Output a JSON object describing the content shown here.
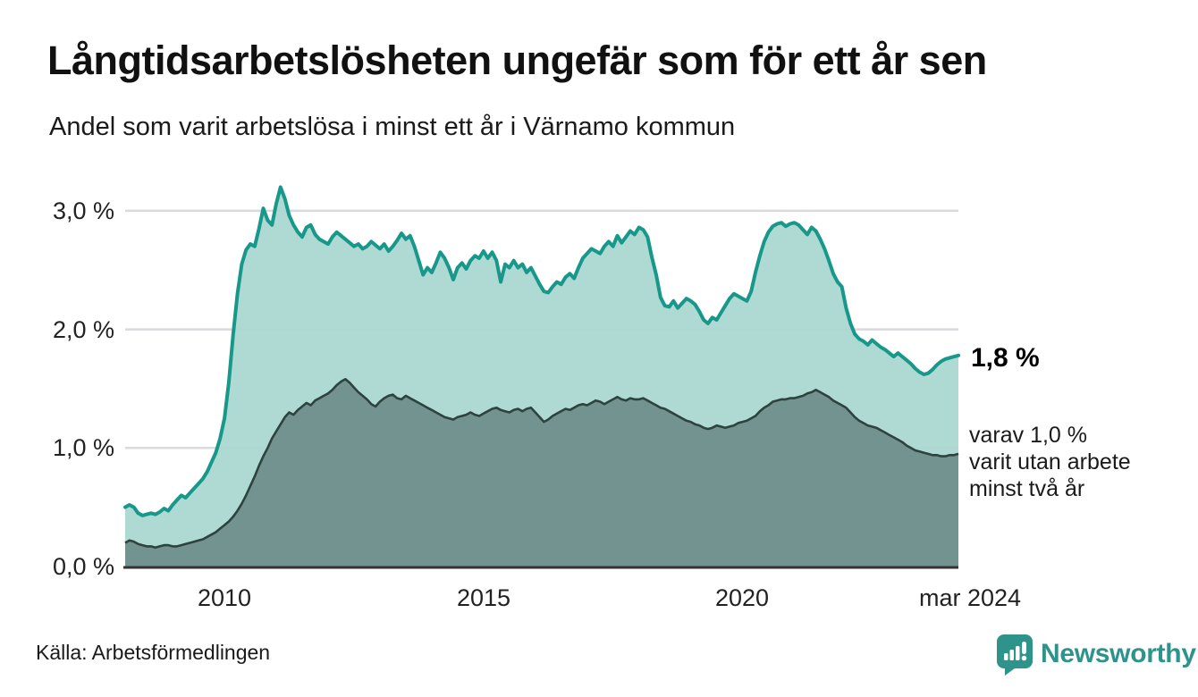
{
  "header": {
    "title": "Långtidsarbetslösheten ungefär som för ett år sen",
    "subtitle": "Andel som varit arbetslösa i minst ett år i Värnamo kommun"
  },
  "annotations": {
    "end_value": "1,8 %",
    "secondary_note": "varav 1,0 %\nvarit utan arbete\nminst två år"
  },
  "footer": {
    "source": "Källa: Arbetsförmedlingen",
    "brand": "Newsworthy"
  },
  "colors": {
    "primary_line": "#17988a",
    "primary_fill": "#a9d7d1",
    "secondary_line": "#2e423e",
    "secondary_fill": "#6f918c",
    "gridline": "#d9d9de",
    "axis": "#333333",
    "brand_teal": "#2e938b"
  },
  "chart_data": {
    "type": "area",
    "title": "Långtidsarbetslösheten ungefär som för ett år sen",
    "subtitle": "Andel som varit arbetslösa i minst ett år i Värnamo kommun",
    "unit": "%",
    "x_start": "2008-02",
    "x_end": "2024-03",
    "x_tick_labels": [
      "2010",
      "2015",
      "2020",
      "mar 2024"
    ],
    "x_tick_month_index": [
      23,
      83,
      143,
      193
    ],
    "y_tick_labels": [
      "3,0 %",
      "2,0 %",
      "1,0 %",
      "0,0 %"
    ],
    "y_ticks": [
      3.0,
      2.0,
      1.0,
      0.0
    ],
    "ylim": [
      0,
      3.3
    ],
    "grid": true,
    "legend_position": "right-annotations",
    "end_values": {
      "minst_ett_ar": 1.8,
      "minst_tva_ar": 1.0
    },
    "series": [
      {
        "name": "Andel arbetslösa minst ett år",
        "values": [
          0.5,
          0.52,
          0.5,
          0.45,
          0.43,
          0.44,
          0.45,
          0.44,
          0.46,
          0.49,
          0.47,
          0.52,
          0.56,
          0.6,
          0.58,
          0.62,
          0.66,
          0.7,
          0.74,
          0.8,
          0.88,
          0.96,
          1.08,
          1.25,
          1.55,
          1.95,
          2.3,
          2.55,
          2.67,
          2.72,
          2.7,
          2.85,
          3.02,
          2.92,
          2.88,
          3.06,
          3.2,
          3.1,
          2.96,
          2.88,
          2.82,
          2.78,
          2.86,
          2.88,
          2.8,
          2.76,
          2.74,
          2.72,
          2.78,
          2.82,
          2.79,
          2.76,
          2.73,
          2.7,
          2.72,
          2.68,
          2.7,
          2.74,
          2.71,
          2.68,
          2.72,
          2.66,
          2.7,
          2.75,
          2.81,
          2.76,
          2.79,
          2.7,
          2.58,
          2.46,
          2.52,
          2.48,
          2.56,
          2.65,
          2.6,
          2.52,
          2.42,
          2.52,
          2.56,
          2.51,
          2.58,
          2.62,
          2.6,
          2.66,
          2.6,
          2.65,
          2.58,
          2.4,
          2.55,
          2.52,
          2.58,
          2.52,
          2.55,
          2.48,
          2.52,
          2.45,
          2.38,
          2.32,
          2.31,
          2.36,
          2.4,
          2.38,
          2.44,
          2.47,
          2.43,
          2.52,
          2.6,
          2.64,
          2.68,
          2.66,
          2.64,
          2.7,
          2.74,
          2.7,
          2.79,
          2.73,
          2.78,
          2.83,
          2.8,
          2.86,
          2.84,
          2.78,
          2.61,
          2.46,
          2.27,
          2.2,
          2.19,
          2.24,
          2.18,
          2.22,
          2.26,
          2.24,
          2.21,
          2.15,
          2.08,
          2.05,
          2.1,
          2.08,
          2.14,
          2.2,
          2.26,
          2.3,
          2.28,
          2.26,
          2.24,
          2.32,
          2.48,
          2.62,
          2.74,
          2.82,
          2.87,
          2.89,
          2.9,
          2.87,
          2.89,
          2.9,
          2.88,
          2.84,
          2.8,
          2.86,
          2.83,
          2.76,
          2.68,
          2.58,
          2.47,
          2.4,
          2.36,
          2.18,
          2.05,
          1.96,
          1.92,
          1.9,
          1.87,
          1.91,
          1.88,
          1.85,
          1.83,
          1.8,
          1.77,
          1.8,
          1.77,
          1.74,
          1.71,
          1.67,
          1.64,
          1.62,
          1.63,
          1.66,
          1.7,
          1.73,
          1.75,
          1.76,
          1.77,
          1.78
        ]
      },
      {
        "name": "varav utan arbete minst två år",
        "values": [
          0.2,
          0.22,
          0.21,
          0.19,
          0.18,
          0.17,
          0.17,
          0.16,
          0.17,
          0.18,
          0.18,
          0.17,
          0.17,
          0.18,
          0.19,
          0.2,
          0.21,
          0.22,
          0.23,
          0.25,
          0.27,
          0.29,
          0.32,
          0.35,
          0.38,
          0.42,
          0.47,
          0.53,
          0.6,
          0.68,
          0.76,
          0.85,
          0.93,
          1.0,
          1.08,
          1.14,
          1.2,
          1.26,
          1.3,
          1.28,
          1.32,
          1.35,
          1.38,
          1.36,
          1.4,
          1.42,
          1.44,
          1.46,
          1.49,
          1.53,
          1.56,
          1.58,
          1.55,
          1.51,
          1.47,
          1.44,
          1.41,
          1.37,
          1.35,
          1.39,
          1.42,
          1.44,
          1.45,
          1.42,
          1.41,
          1.44,
          1.42,
          1.4,
          1.38,
          1.36,
          1.34,
          1.32,
          1.3,
          1.28,
          1.26,
          1.25,
          1.24,
          1.26,
          1.27,
          1.28,
          1.3,
          1.28,
          1.27,
          1.29,
          1.31,
          1.33,
          1.34,
          1.32,
          1.31,
          1.3,
          1.32,
          1.33,
          1.31,
          1.33,
          1.34,
          1.3,
          1.26,
          1.22,
          1.24,
          1.27,
          1.29,
          1.31,
          1.33,
          1.32,
          1.34,
          1.36,
          1.37,
          1.36,
          1.38,
          1.4,
          1.39,
          1.37,
          1.39,
          1.41,
          1.43,
          1.41,
          1.4,
          1.42,
          1.41,
          1.41,
          1.42,
          1.4,
          1.38,
          1.36,
          1.34,
          1.33,
          1.31,
          1.29,
          1.27,
          1.25,
          1.23,
          1.22,
          1.2,
          1.19,
          1.17,
          1.16,
          1.17,
          1.19,
          1.18,
          1.17,
          1.18,
          1.19,
          1.21,
          1.22,
          1.23,
          1.25,
          1.27,
          1.31,
          1.34,
          1.36,
          1.39,
          1.4,
          1.41,
          1.41,
          1.42,
          1.42,
          1.43,
          1.44,
          1.46,
          1.47,
          1.49,
          1.47,
          1.45,
          1.43,
          1.4,
          1.38,
          1.36,
          1.34,
          1.3,
          1.26,
          1.23,
          1.21,
          1.19,
          1.18,
          1.17,
          1.15,
          1.13,
          1.11,
          1.09,
          1.07,
          1.05,
          1.02,
          1.0,
          0.98,
          0.97,
          0.96,
          0.95,
          0.94,
          0.94,
          0.93,
          0.93,
          0.94,
          0.94,
          0.95
        ]
      }
    ]
  }
}
